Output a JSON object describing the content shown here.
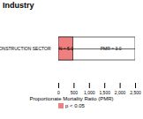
{
  "chart_data": {
    "type": "bar",
    "orientation": "horizontal",
    "title": "Industry",
    "xlabel": "Proportionate Mortality Ratio (PMR)",
    "categories": [
      "CONSTRUCTION SECTOR"
    ],
    "series": [
      {
        "name": "p < 0.05",
        "color": "#f08080",
        "values": [
          480
        ]
      }
    ],
    "box_range": [
      0,
      2500
    ],
    "reference_line": 500,
    "annotations": [
      {
        "text": "N < 5.0",
        "x": 240
      },
      {
        "text": "PMR > 3.0",
        "x": 1700
      }
    ],
    "xlim": [
      0,
      2500
    ],
    "xticks": [
      0,
      500,
      {
        "value": 1000,
        "label": "1,000"
      },
      {
        "value": 1500,
        "label": "1,500"
      },
      {
        "value": 2000,
        "label": "2,000"
      },
      {
        "value": 2500,
        "label": "2,500"
      }
    ],
    "legend": "bottom",
    "grid": false
  }
}
